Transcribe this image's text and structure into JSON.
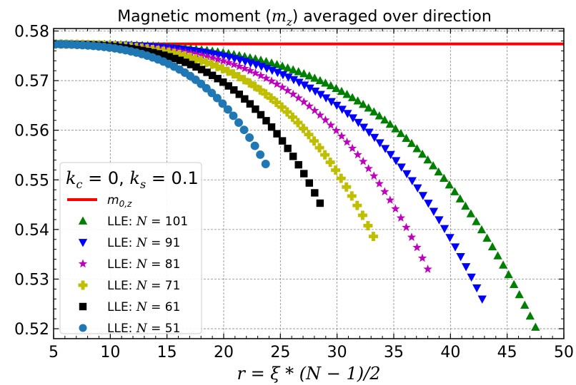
{
  "chart_data": {
    "type": "scatter",
    "title": "Magnetic moment (m_z) averaged over direction",
    "xlabel": "r = ξ * (N − 1)/2",
    "ylabel": "",
    "xlim": [
      5,
      50
    ],
    "ylim": [
      0.518,
      0.5805
    ],
    "xticks": [
      5,
      10,
      15,
      20,
      25,
      30,
      35,
      40,
      45,
      50
    ],
    "xtick_labels": [
      "5",
      "10",
      "15",
      "20",
      "25",
      "30",
      "35",
      "40",
      "45",
      "50"
    ],
    "yticks": [
      0.52,
      0.53,
      0.54,
      0.55,
      0.56,
      0.57,
      0.58
    ],
    "ytick_labels": [
      "0.52",
      "0.53",
      "0.54",
      "0.55",
      "0.56",
      "0.57",
      "0.58"
    ],
    "grid": true,
    "legend_placement": "lower-left",
    "legend_title": "k_c = 0, k_s = 0.1",
    "series": [
      {
        "name": "m_{0,z}",
        "kind": "line",
        "color": "#ff0000",
        "x": [
          5,
          50
        ],
        "y": [
          0.5774,
          0.5774
        ]
      },
      {
        "name": "LLE: N = 101",
        "kind": "points",
        "marker": "triangle-up",
        "color": "#008000",
        "N": 101,
        "x_end": 47.5,
        "y_end": 0.5203
      },
      {
        "name": "LLE: N = 91",
        "kind": "points",
        "marker": "triangle-down",
        "color": "#0000ff",
        "N": 91,
        "x_end": 42.8,
        "y_end": 0.526
      },
      {
        "name": "LLE: N = 81",
        "kind": "points",
        "marker": "star",
        "color": "#bf00bf",
        "N": 81,
        "x_end": 38.0,
        "y_end": 0.532
      },
      {
        "name": "LLE: N = 71",
        "kind": "points",
        "marker": "plus",
        "color": "#bfbf00",
        "N": 71,
        "x_end": 33.2,
        "y_end": 0.5386
      },
      {
        "name": "LLE: N = 61",
        "kind": "points",
        "marker": "square",
        "color": "#000000",
        "N": 61,
        "x_end": 28.5,
        "y_end": 0.5453
      },
      {
        "name": "LLE: N = 51",
        "kind": "points",
        "marker": "circle",
        "color": "#1f77b4",
        "N": 51,
        "x_end": 23.7,
        "y_end": 0.5532
      }
    ],
    "point_spacing": 0.475
  }
}
